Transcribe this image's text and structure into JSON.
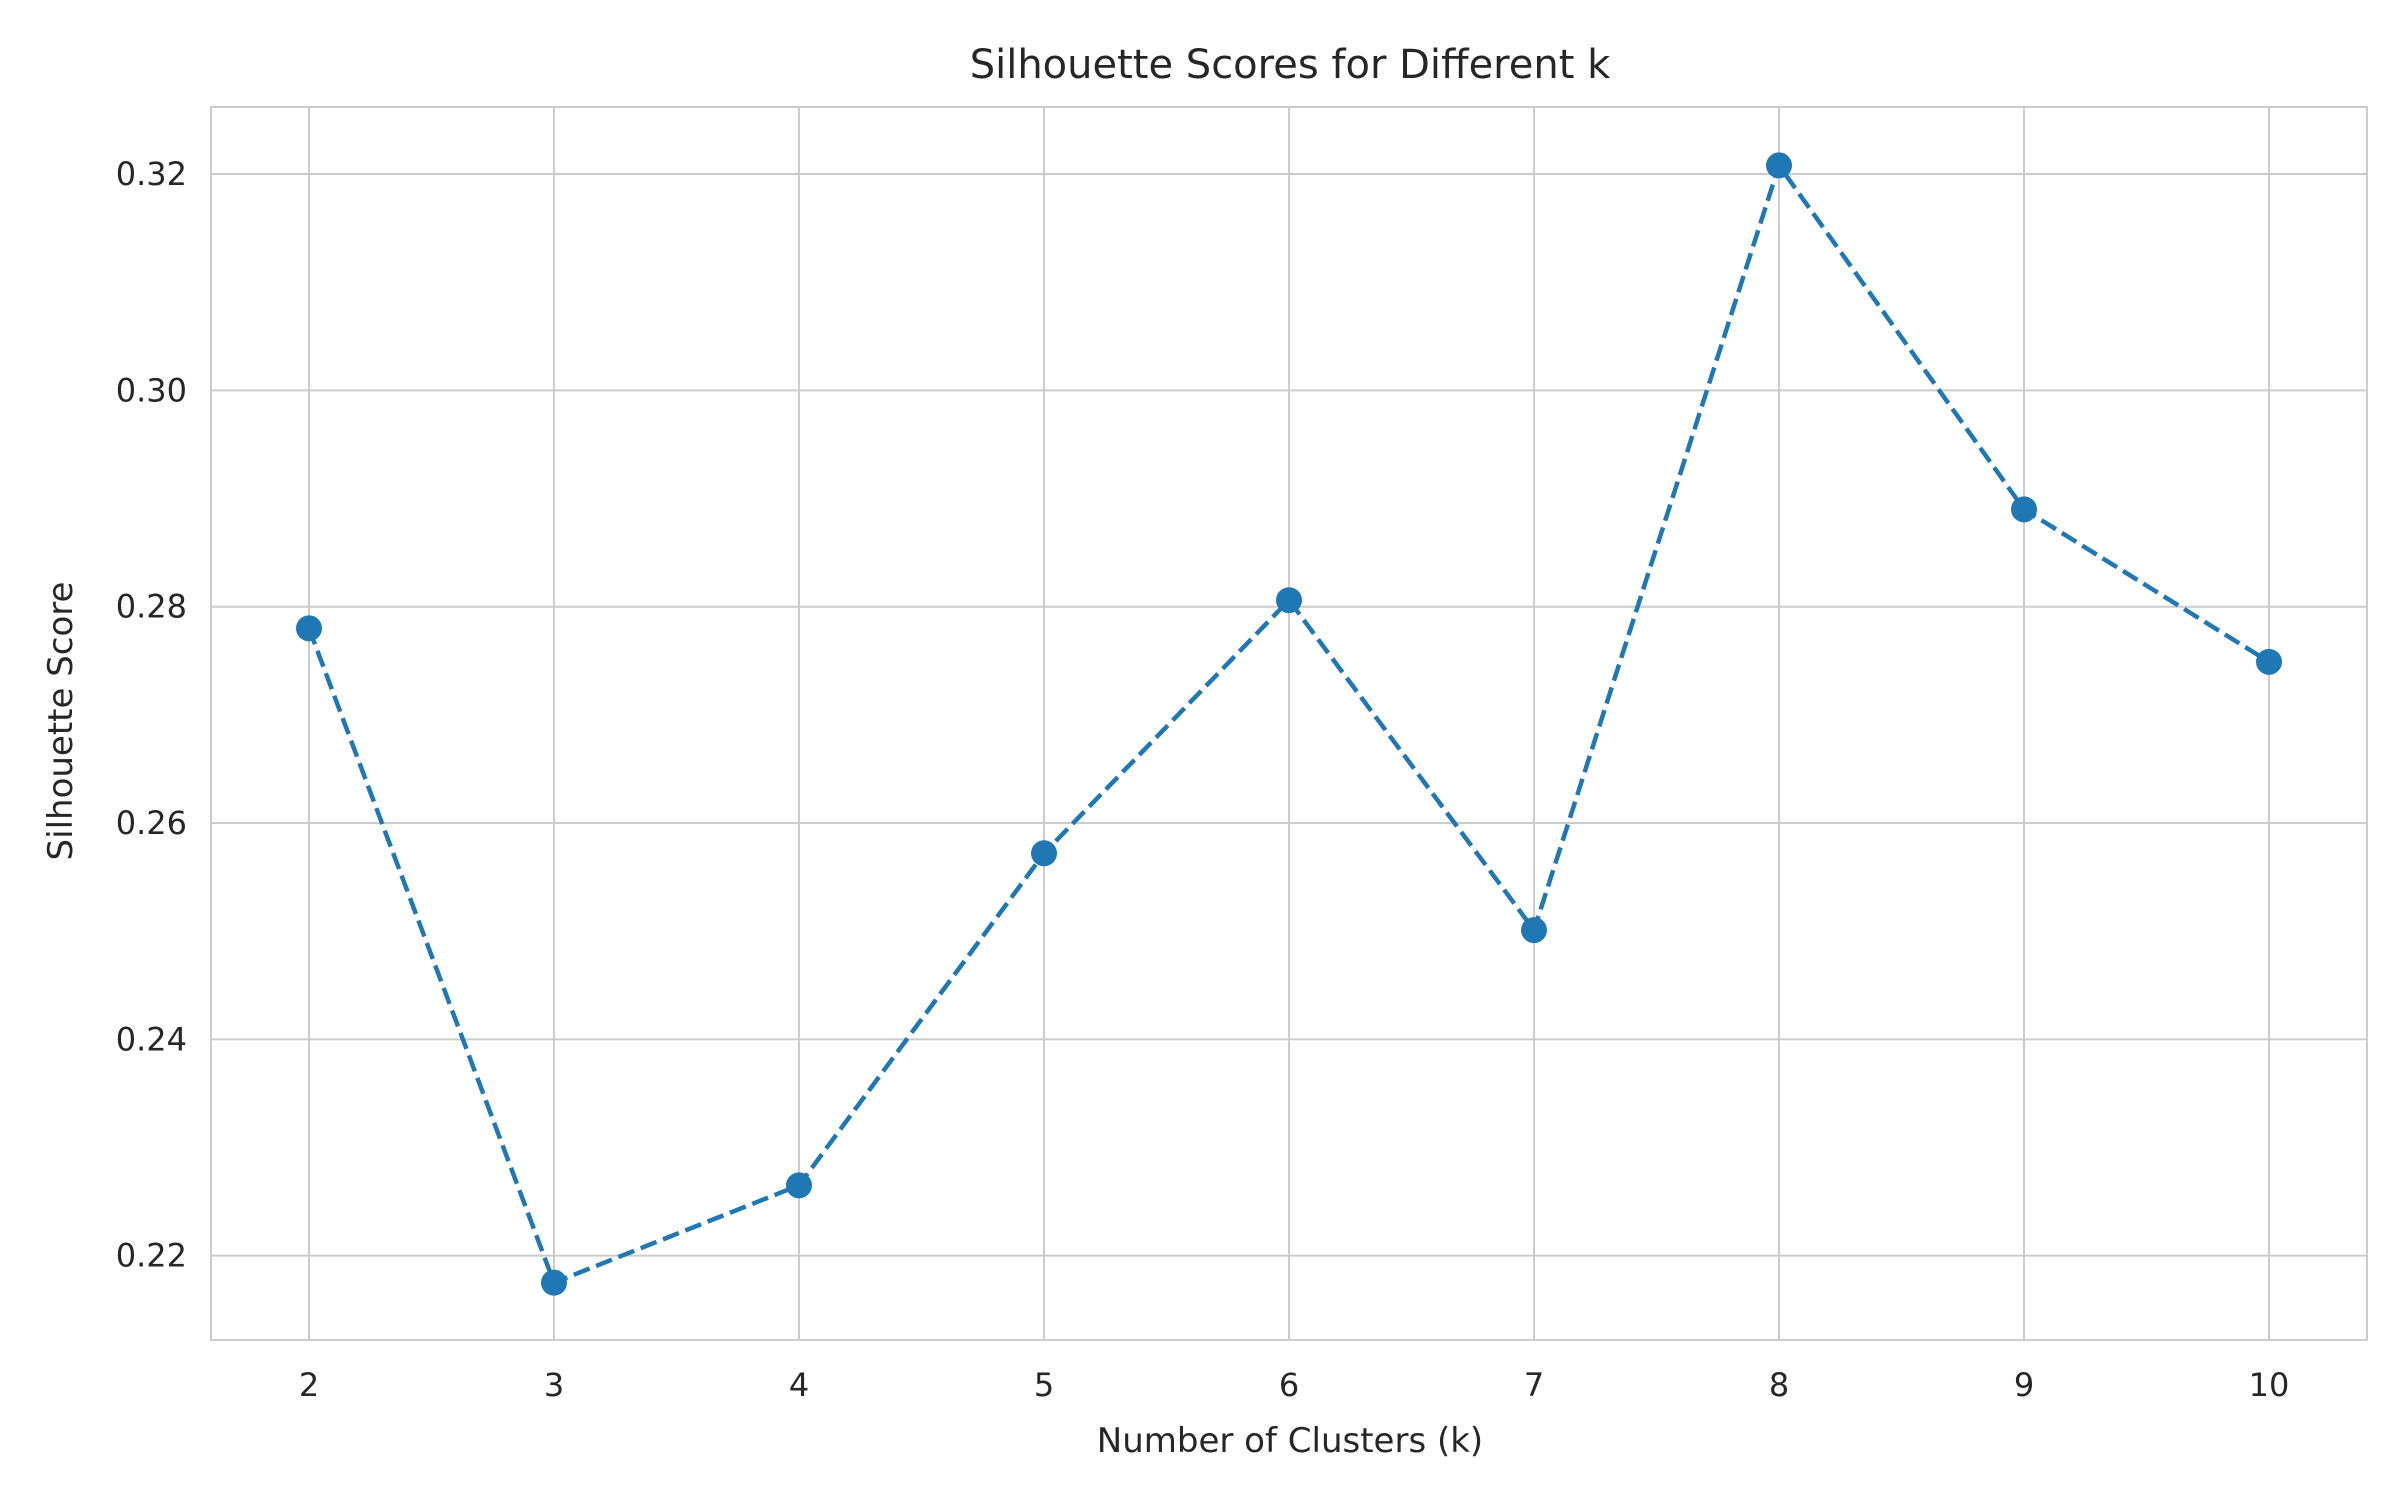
{
  "chart_data": {
    "type": "line",
    "title": "Silhouette Scores for Different k",
    "xlabel": "Number of Clusters (k)",
    "ylabel": "Silhouette Score",
    "x": [
      2,
      3,
      4,
      5,
      6,
      7,
      8,
      9,
      10
    ],
    "series": [
      {
        "values": [
          0.278,
          0.2175,
          0.2265,
          0.2572,
          0.2806,
          0.2501,
          0.3208,
          0.289,
          0.2749
        ],
        "color": "#1f77b4",
        "line_style": "dashed",
        "marker": "circle"
      }
    ],
    "xlim": [
      1.6,
      10.4
    ],
    "ylim": [
      0.2122,
      0.3262
    ],
    "x_ticks": [
      2,
      3,
      4,
      5,
      6,
      7,
      8,
      9,
      10
    ],
    "x_tick_labels": [
      "2",
      "3",
      "4",
      "5",
      "6",
      "7",
      "8",
      "9",
      "10"
    ],
    "y_ticks": [
      0.22,
      0.24,
      0.26,
      0.28,
      0.3,
      0.32
    ],
    "y_tick_labels": [
      "0.22",
      "0.24",
      "0.26",
      "0.28",
      "0.30",
      "0.32"
    ],
    "grid": true,
    "grid_color": "#cccccc",
    "frame_color": "#cccccc",
    "style": "seaborn-whitegrid"
  }
}
